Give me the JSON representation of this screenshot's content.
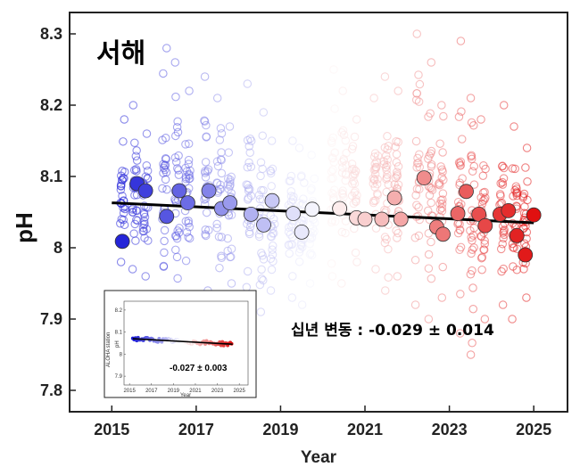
{
  "chart_data": [
    {
      "type": "scatter",
      "region_label": "서해",
      "xlabel": "Year",
      "ylabel": "pH",
      "xlim": [
        2014.0,
        2025.8
      ],
      "ylim": [
        7.77,
        8.33
      ],
      "x_ticks": [
        2015,
        2017,
        2019,
        2021,
        2023,
        2025
      ],
      "y_ticks": [
        7.8,
        7.9,
        8,
        8.1,
        8.2,
        8.3
      ],
      "y_tick_labels": [
        "7.8",
        "7.9",
        "8",
        "8.1",
        "8.2",
        "8.3"
      ],
      "grid": false,
      "trend": {
        "x": [
          2015,
          2025
        ],
        "y": [
          8.063,
          8.035
        ]
      },
      "annotation": "십년 변동 : -0.029 ± 0.014",
      "colormap": {
        "start": "#1a1ad6",
        "mid": "#ffffff",
        "end": "#e01010"
      },
      "monthly_means": {
        "x": [
          2015.25,
          2015.6,
          2015.8,
          2016.3,
          2016.6,
          2016.8,
          2017.3,
          2017.6,
          2017.8,
          2018.3,
          2018.6,
          2018.8,
          2019.3,
          2019.5,
          2019.75,
          2020.4,
          2020.8,
          2021.0,
          2021.4,
          2021.7,
          2021.85,
          2022.4,
          2022.7,
          2022.85,
          2023.2,
          2023.4,
          2023.7,
          2023.85,
          2024.2,
          2024.4,
          2024.6,
          2024.8,
          2025.0
        ],
        "y": [
          8.009,
          8.09,
          8.08,
          8.044,
          8.08,
          8.063,
          8.08,
          8.055,
          8.063,
          8.047,
          8.032,
          8.066,
          8.048,
          8.022,
          8.054,
          8.055,
          8.042,
          8.04,
          8.04,
          8.07,
          8.04,
          8.098,
          8.029,
          8.019,
          8.048,
          8.079,
          8.047,
          8.031,
          8.047,
          8.052,
          8.017,
          7.99,
          8.046
        ]
      },
      "individual_samples": {
        "x_columns": [
          2015.25,
          2015.55,
          2015.8,
          2016.25,
          2016.55,
          2016.8,
          2017.25,
          2017.55,
          2017.8,
          2018.25,
          2018.55,
          2018.8,
          2019.25,
          2019.5,
          2019.75,
          2020.25,
          2020.5,
          2020.75,
          2021.25,
          2021.5,
          2021.75,
          2022.25,
          2022.55,
          2022.8,
          2023.25,
          2023.55,
          2023.8,
          2024.25,
          2024.55,
          2024.8
        ],
        "y_min": [
          7.98,
          7.97,
          7.96,
          7.93,
          7.92,
          7.93,
          7.94,
          7.93,
          7.95,
          7.92,
          7.91,
          7.94,
          7.93,
          7.92,
          7.95,
          7.96,
          7.95,
          7.98,
          7.97,
          7.94,
          7.96,
          7.92,
          7.9,
          7.93,
          7.88,
          7.85,
          7.9,
          7.92,
          7.9,
          7.93
        ],
        "y_max": [
          8.18,
          8.2,
          8.16,
          8.28,
          8.26,
          8.22,
          8.24,
          8.21,
          8.17,
          8.23,
          8.19,
          8.15,
          8.15,
          8.14,
          8.13,
          8.25,
          8.22,
          8.18,
          8.21,
          8.24,
          8.22,
          8.3,
          8.26,
          8.2,
          8.29,
          8.21,
          8.18,
          8.2,
          8.17,
          8.14
        ]
      }
    },
    {
      "type": "scatter",
      "title": "ALOHA station",
      "ylabel": "pH",
      "xlabel": "Year",
      "x_ticks": [
        2015,
        2017,
        2019,
        2021,
        2023,
        2025
      ],
      "x_tick_labels": [
        "2015",
        "2017",
        "2019",
        "2021",
        "2023",
        "2025"
      ],
      "y_ticks": [
        7.9,
        8,
        8.1,
        8.2
      ],
      "y_tick_labels": [
        "7.9",
        "8",
        "8.1",
        "8.2"
      ],
      "xlim": [
        2014.5,
        2025.8
      ],
      "ylim": [
        7.86,
        8.24
      ],
      "trend": {
        "x": [
          2015.3,
          2024.4
        ],
        "y": [
          8.07,
          8.045
        ]
      },
      "annotation": "-0.027 ± 0.003"
    }
  ]
}
